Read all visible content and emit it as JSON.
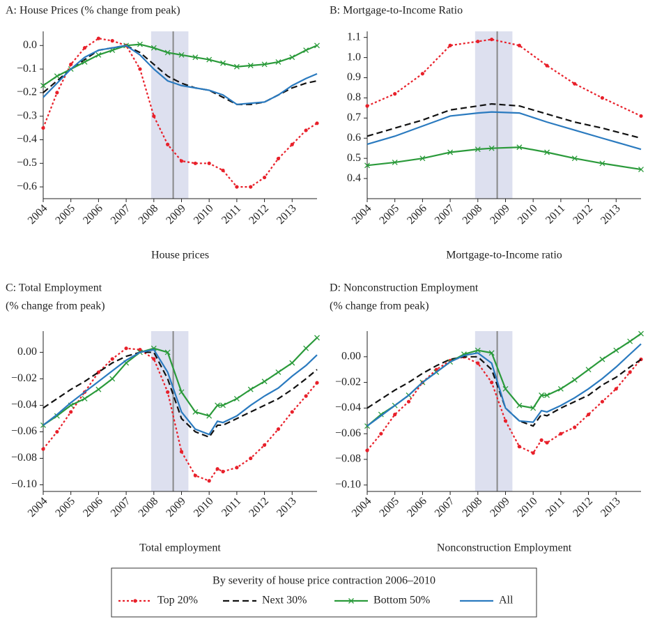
{
  "chart_data": [
    {
      "type": "line",
      "title": "A: House Prices (% change from peak)",
      "xlabel": "House prices",
      "x": [
        2004,
        2004.5,
        2005,
        2005.5,
        2006,
        2006.5,
        2007,
        2007.5,
        2008,
        2008.5,
        2009,
        2009.5,
        2010,
        2010.5,
        2011,
        2011.5,
        2012,
        2012.5,
        2013,
        2013.5,
        2013.9
      ],
      "xlim": [
        2004,
        2013.9
      ],
      "xticks": [
        2004,
        2005,
        2006,
        2007,
        2008,
        2009,
        2010,
        2011,
        2012,
        2013
      ],
      "ylim": [
        -0.65,
        0.06
      ],
      "yticks": [
        {
          "value": 0,
          "label": "0.0"
        },
        {
          "value": -0.1,
          "label": "−0.1"
        },
        {
          "value": -0.2,
          "label": "−0.2"
        },
        {
          "value": -0.3,
          "label": "−0.3"
        },
        {
          "value": -0.4,
          "label": "−0.4"
        },
        {
          "value": -0.5,
          "label": "−0.5"
        },
        {
          "value": -0.6,
          "label": "−0.6"
        }
      ],
      "shade": [
        2007.9,
        2009.25
      ],
      "vline": 2008.7,
      "series": [
        {
          "name": "Top 20%",
          "color": "#e8202a",
          "dash": "dotted",
          "marker": "circle",
          "values": [
            -0.35,
            -0.2,
            -0.08,
            -0.01,
            0.03,
            0.02,
            0,
            -0.1,
            -0.3,
            -0.42,
            -0.49,
            -0.5,
            -0.5,
            -0.53,
            -0.6,
            -0.6,
            -0.56,
            -0.48,
            -0.42,
            -0.36,
            -0.33
          ]
        },
        {
          "name": "Next 30%",
          "color": "#111111",
          "dash": "dashed",
          "marker": "none",
          "values": [
            -0.2,
            -0.15,
            -0.1,
            -0.06,
            -0.02,
            -0.01,
            0,
            -0.03,
            -0.08,
            -0.13,
            -0.16,
            -0.18,
            -0.19,
            -0.22,
            -0.25,
            -0.25,
            -0.24,
            -0.21,
            -0.18,
            -0.16,
            -0.15
          ]
        },
        {
          "name": "Bottom 50%",
          "color": "#2a9a3a",
          "dash": "solid",
          "marker": "x",
          "values": [
            -0.17,
            -0.13,
            -0.1,
            -0.07,
            -0.04,
            -0.02,
            0,
            0.005,
            -0.01,
            -0.03,
            -0.04,
            -0.05,
            -0.06,
            -0.075,
            -0.09,
            -0.085,
            -0.08,
            -0.07,
            -0.05,
            -0.02,
            0
          ]
        },
        {
          "name": "All",
          "color": "#2a7abf",
          "dash": "solid",
          "marker": "none",
          "values": [
            -0.22,
            -0.16,
            -0.1,
            -0.05,
            -0.02,
            -0.01,
            0,
            -0.04,
            -0.1,
            -0.15,
            -0.17,
            -0.18,
            -0.19,
            -0.21,
            -0.25,
            -0.245,
            -0.24,
            -0.21,
            -0.17,
            -0.14,
            -0.12
          ]
        }
      ]
    },
    {
      "type": "line",
      "title": "B: Mortgage-to-Income Ratio",
      "xlabel": "Mortgage-to-Income ratio",
      "x": [
        2004,
        2005,
        2006,
        2007,
        2008,
        2008.5,
        2009.5,
        2010.5,
        2011.5,
        2012.5,
        2013.9
      ],
      "xlim": [
        2004,
        2013.9
      ],
      "xticks": [
        2004,
        2005,
        2006,
        2007,
        2008,
        2009,
        2010,
        2011,
        2012,
        2013
      ],
      "ylim": [
        0.3,
        1.13
      ],
      "yticks": [
        1.1,
        {
          "value": 1,
          "label": "1.0"
        },
        0.9,
        0.8,
        0.7,
        0.6,
        0.5,
        0.4
      ],
      "shade": [
        2007.9,
        2009.25
      ],
      "vline": 2008.7,
      "series": [
        {
          "color": "#e8202a",
          "dash": "dotted",
          "marker": "circle",
          "values": [
            0.76,
            0.82,
            0.92,
            1.06,
            1.08,
            1.09,
            1.06,
            0.96,
            0.87,
            0.8,
            0.71
          ]
        },
        {
          "color": "#111111",
          "dash": "dashed",
          "marker": "none",
          "values": [
            0.61,
            0.65,
            0.69,
            0.74,
            0.76,
            0.77,
            0.76,
            0.72,
            0.68,
            0.65,
            0.6
          ]
        },
        {
          "color": "#2a9a3a",
          "dash": "solid",
          "marker": "x",
          "values": [
            0.465,
            0.48,
            0.5,
            0.53,
            0.545,
            0.55,
            0.555,
            0.53,
            0.5,
            0.475,
            0.445
          ]
        },
        {
          "color": "#2a7abf",
          "dash": "solid",
          "marker": "none",
          "values": [
            0.57,
            0.61,
            0.66,
            0.71,
            0.725,
            0.73,
            0.725,
            0.68,
            0.64,
            0.6,
            0.545
          ]
        }
      ]
    },
    {
      "type": "line",
      "title": "C: Total Employment",
      "subtitle": "(% change from peak)",
      "xlabel": "Total employment",
      "x": [
        2004,
        2004.5,
        2005,
        2005.5,
        2006,
        2006.5,
        2007,
        2007.5,
        2008,
        2008.5,
        2009,
        2009.5,
        2010,
        2010.3,
        2010.5,
        2011,
        2011.5,
        2012,
        2012.5,
        2013,
        2013.5,
        2013.9
      ],
      "xlim": [
        2004,
        2013.9
      ],
      "xticks": [
        2004,
        2005,
        2006,
        2007,
        2008,
        2009,
        2010,
        2011,
        2012,
        2013
      ],
      "ylim": [
        -0.105,
        0.016
      ],
      "yticks": [
        {
          "value": 0,
          "label": "0.00"
        },
        {
          "value": -0.02,
          "label": "−0.02"
        },
        {
          "value": -0.04,
          "label": "−0.04"
        },
        {
          "value": -0.06,
          "label": "−0.06"
        },
        {
          "value": -0.08,
          "label": "−0.08"
        },
        {
          "value": -0.1,
          "label": "−0.10"
        }
      ],
      "shade": [
        2007.9,
        2009.25
      ],
      "vline": 2008.7,
      "series": [
        {
          "color": "#e8202a",
          "dash": "dotted",
          "marker": "circle",
          "values": [
            -0.073,
            -0.06,
            -0.045,
            -0.03,
            -0.015,
            -0.005,
            0.003,
            0.002,
            -0.005,
            -0.03,
            -0.075,
            -0.093,
            -0.097,
            -0.088,
            -0.09,
            -0.087,
            -0.08,
            -0.07,
            -0.058,
            -0.045,
            -0.033,
            -0.023
          ]
        },
        {
          "color": "#111111",
          "dash": "dashed",
          "marker": "none",
          "values": [
            -0.042,
            -0.035,
            -0.028,
            -0.022,
            -0.015,
            -0.008,
            -0.003,
            0,
            0,
            -0.02,
            -0.05,
            -0.06,
            -0.064,
            -0.055,
            -0.055,
            -0.05,
            -0.045,
            -0.04,
            -0.035,
            -0.028,
            -0.02,
            -0.013
          ]
        },
        {
          "color": "#2a9a3a",
          "dash": "solid",
          "marker": "x",
          "values": [
            -0.055,
            -0.048,
            -0.04,
            -0.035,
            -0.028,
            -0.02,
            -0.008,
            0,
            0.003,
            0,
            -0.03,
            -0.045,
            -0.048,
            -0.04,
            -0.04,
            -0.035,
            -0.028,
            -0.022,
            -0.015,
            -0.008,
            0.003,
            0.011
          ]
        },
        {
          "color": "#2a7abf",
          "dash": "solid",
          "marker": "none",
          "values": [
            -0.055,
            -0.047,
            -0.038,
            -0.03,
            -0.022,
            -0.014,
            -0.006,
            0,
            0.002,
            -0.015,
            -0.045,
            -0.058,
            -0.062,
            -0.052,
            -0.053,
            -0.048,
            -0.04,
            -0.033,
            -0.027,
            -0.018,
            -0.01,
            -0.002
          ]
        }
      ]
    },
    {
      "type": "line",
      "title": "D: Nonconstruction Employment",
      "subtitle": "(% change from peak)",
      "xlabel": "Nonconstruction Employment",
      "x": [
        2004,
        2004.5,
        2005,
        2005.5,
        2006,
        2006.5,
        2007,
        2007.5,
        2008,
        2008.5,
        2009,
        2009.5,
        2010,
        2010.3,
        2010.5,
        2011,
        2011.5,
        2012,
        2012.5,
        2013,
        2013.5,
        2013.9
      ],
      "xlim": [
        2004,
        2013.9
      ],
      "xticks": [
        2004,
        2005,
        2006,
        2007,
        2008,
        2009,
        2010,
        2011,
        2012,
        2013
      ],
      "ylim": [
        -0.105,
        0.02
      ],
      "yticks": [
        {
          "value": 0,
          "label": "0.00"
        },
        {
          "value": -0.02,
          "label": "−0.02"
        },
        {
          "value": -0.04,
          "label": "−0.04"
        },
        {
          "value": -0.06,
          "label": "−0.06"
        },
        {
          "value": -0.08,
          "label": "−0.08"
        },
        {
          "value": -0.1,
          "label": "−0.10"
        }
      ],
      "shade": [
        2007.9,
        2009.25
      ],
      "vline": 2008.7,
      "series": [
        {
          "color": "#e8202a",
          "dash": "dotted",
          "marker": "circle",
          "values": [
            -0.073,
            -0.06,
            -0.045,
            -0.035,
            -0.02,
            -0.01,
            -0.003,
            0,
            -0.005,
            -0.02,
            -0.05,
            -0.07,
            -0.075,
            -0.065,
            -0.067,
            -0.06,
            -0.055,
            -0.045,
            -0.035,
            -0.025,
            -0.012,
            -0.002
          ]
        },
        {
          "color": "#111111",
          "dash": "dashed",
          "marker": "none",
          "values": [
            -0.04,
            -0.033,
            -0.026,
            -0.02,
            -0.013,
            -0.007,
            -0.002,
            0,
            0,
            -0.01,
            -0.04,
            -0.05,
            -0.054,
            -0.045,
            -0.046,
            -0.04,
            -0.035,
            -0.03,
            -0.022,
            -0.016,
            -0.008,
            -0.002
          ]
        },
        {
          "color": "#2a9a3a",
          "dash": "solid",
          "marker": "x",
          "values": [
            -0.054,
            -0.045,
            -0.038,
            -0.03,
            -0.02,
            -0.012,
            -0.004,
            0.002,
            0.005,
            0.003,
            -0.025,
            -0.038,
            -0.04,
            -0.03,
            -0.03,
            -0.025,
            -0.018,
            -0.01,
            -0.002,
            0.005,
            0.012,
            0.018
          ]
        },
        {
          "color": "#2a7abf",
          "dash": "solid",
          "marker": "none",
          "values": [
            -0.054,
            -0.046,
            -0.038,
            -0.03,
            -0.02,
            -0.012,
            -0.004,
            0.001,
            0.003,
            -0.005,
            -0.04,
            -0.05,
            -0.051,
            -0.042,
            -0.043,
            -0.038,
            -0.032,
            -0.025,
            -0.017,
            -0.008,
            0.002,
            0.01
          ]
        }
      ]
    }
  ],
  "legend": {
    "title": "By severity of house price contraction 2006–2010"
  }
}
